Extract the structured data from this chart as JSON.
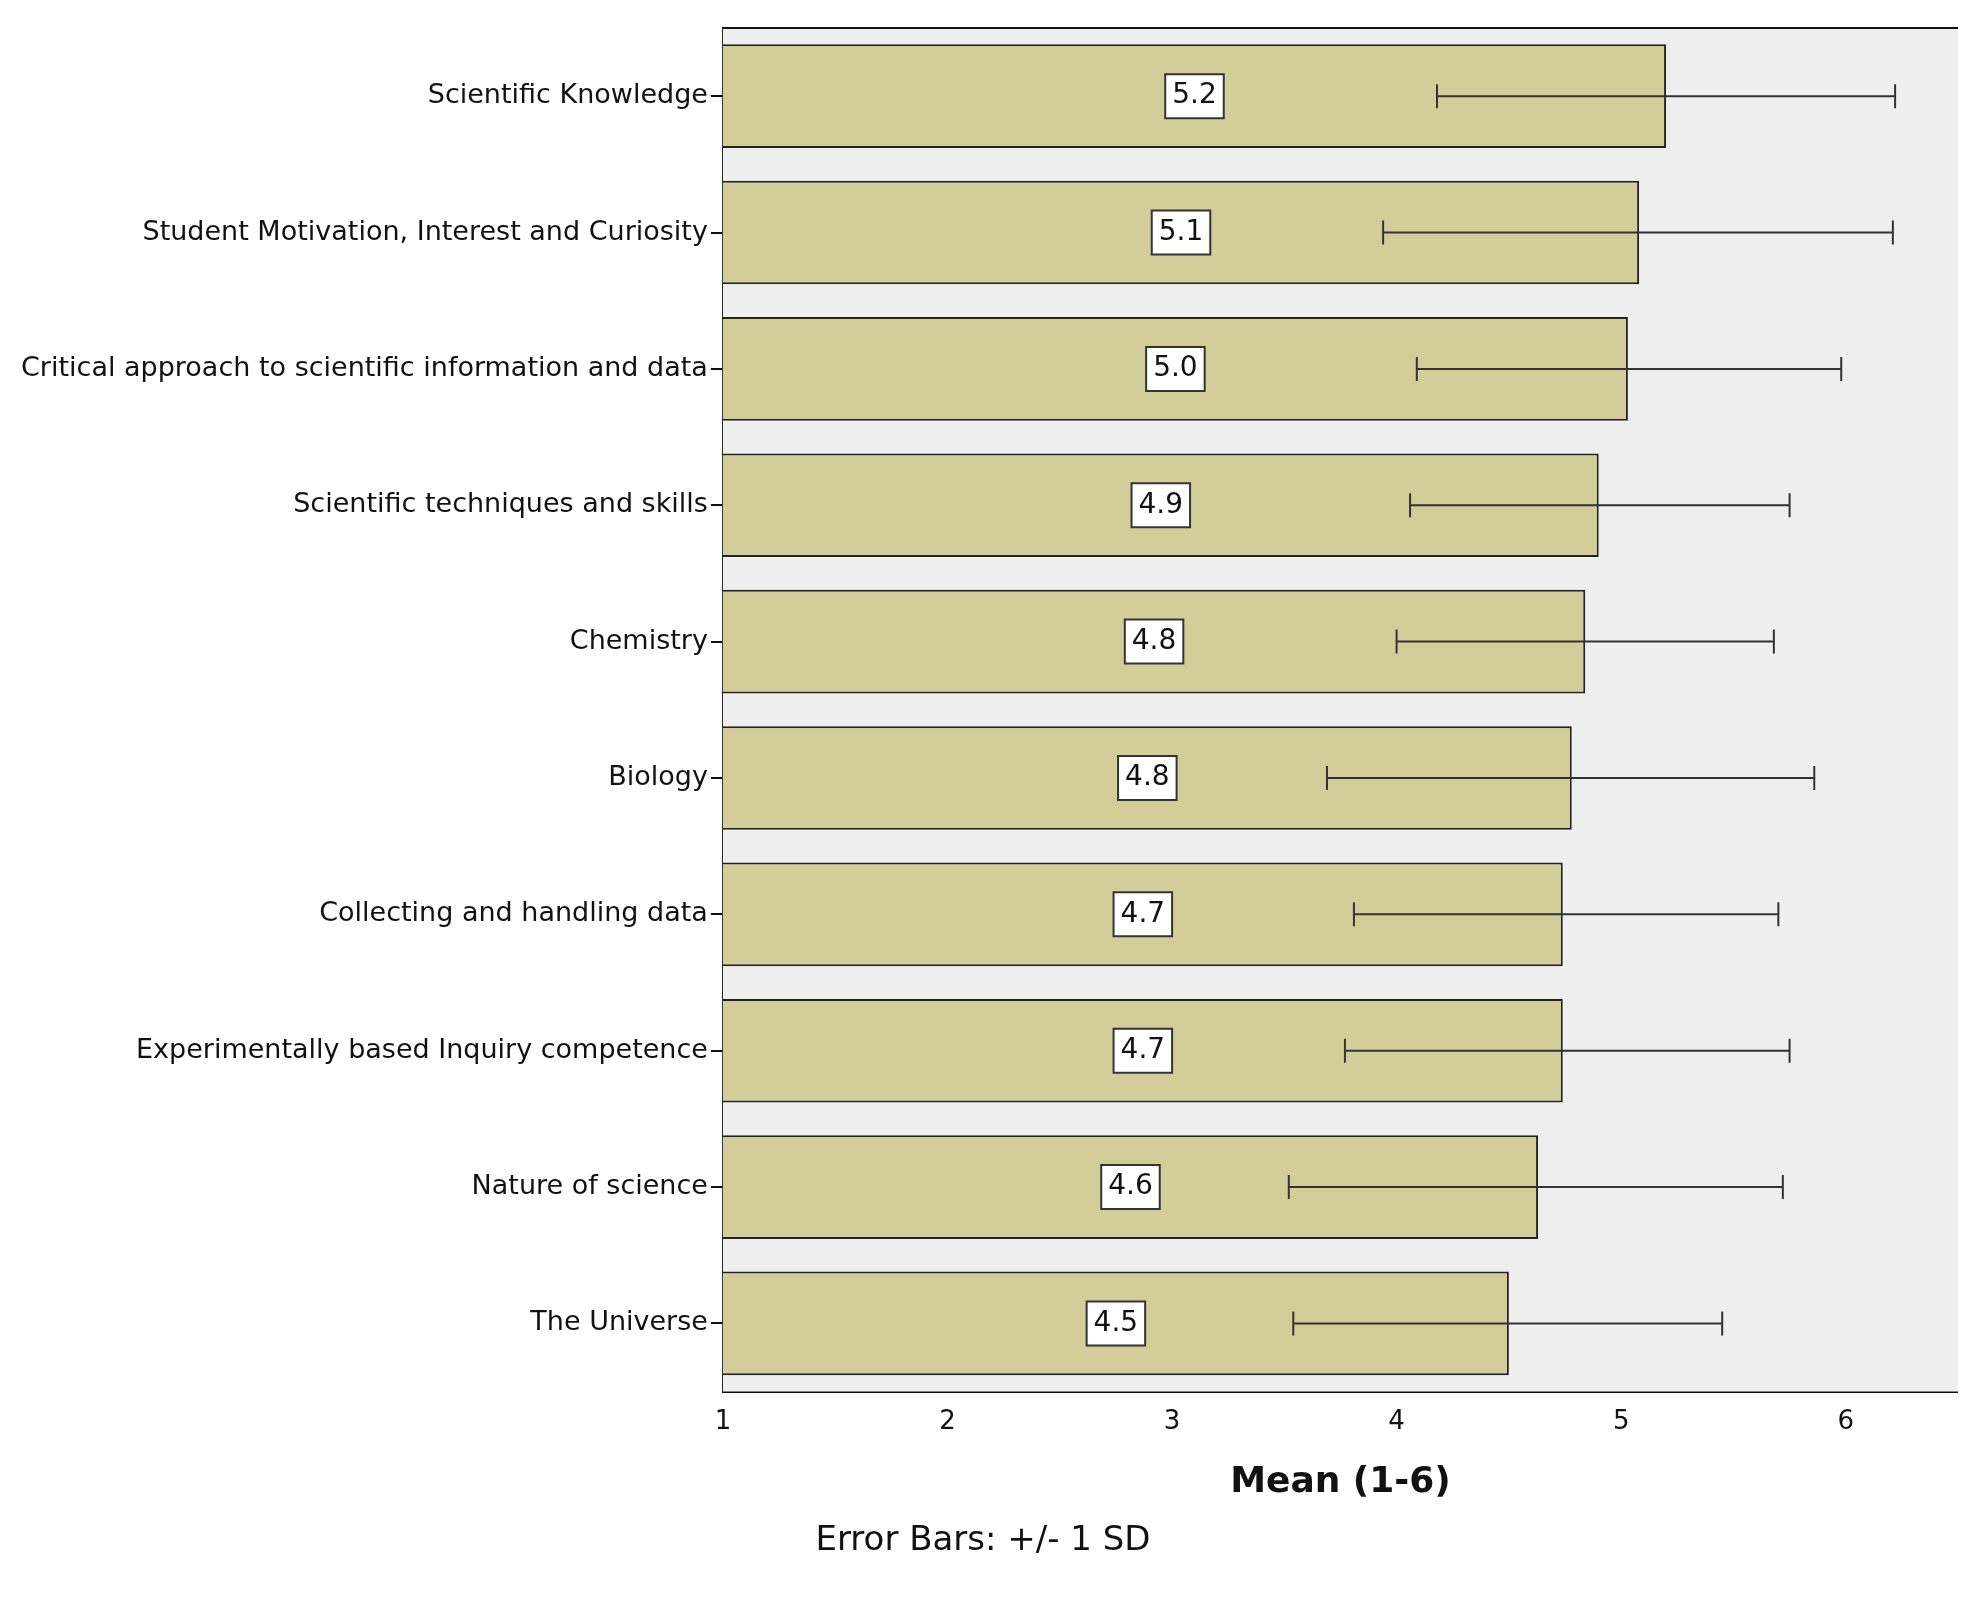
{
  "chart_data": {
    "type": "bar",
    "orientation": "horizontal",
    "xlabel": "Mean (1-6)",
    "categories": [
      "Scientific Knowledge",
      "Student Motivation, Interest and Curiosity",
      "Critical approach to scientific information and data",
      "Scientific techniques and skills",
      "Chemistry",
      "Biology",
      "Collecting and handling data",
      "Experimentally based Inquiry competence",
      "Nature of science",
      "The Universe"
    ],
    "values": [
      5.2,
      5.08,
      5.03,
      4.9,
      4.84,
      4.78,
      4.74,
      4.74,
      4.63,
      4.5
    ],
    "value_labels": [
      "5.2",
      "5.1",
      "5.0",
      "4.9",
      "4.8",
      "4.8",
      "4.7",
      "4.7",
      "4.6",
      "4.5"
    ],
    "errors": [
      [
        4.18,
        6.22
      ],
      [
        3.94,
        6.21
      ],
      [
        4.09,
        5.98
      ],
      [
        4.06,
        5.75
      ],
      [
        4.0,
        5.68
      ],
      [
        3.69,
        5.86
      ],
      [
        3.81,
        5.7
      ],
      [
        3.77,
        5.75
      ],
      [
        3.52,
        5.72
      ],
      [
        3.54,
        5.45
      ]
    ],
    "color": "#d3ce99",
    "xlim": [
      1,
      6.5
    ],
    "xticks": [
      1,
      2,
      3,
      4,
      5,
      6
    ],
    "grid": false,
    "legend": false,
    "annotations": [
      "Error Bars: +/- 1 SD"
    ]
  }
}
